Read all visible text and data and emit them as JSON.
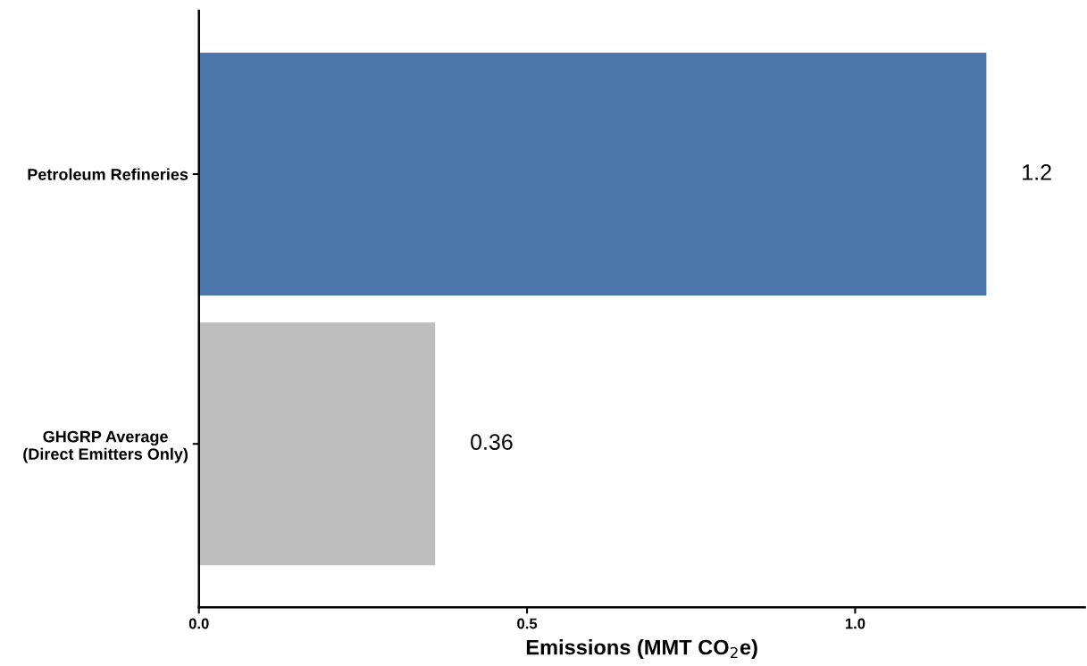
{
  "chart_data": {
    "type": "bar",
    "orientation": "horizontal",
    "categories": [
      "Petroleum Refineries",
      "GHGRP Average\n(Direct Emitters Only)"
    ],
    "values": [
      1.2,
      0.36
    ],
    "colors": [
      "#4a76ab",
      "#bebebe"
    ],
    "data_labels": true,
    "xlabel": "Emissions (MMT CO$_{2}$e)",
    "xlim": [
      0,
      1.35
    ],
    "xticks": [
      {
        "value": 0,
        "label": "0.0"
      },
      {
        "value": 0.5,
        "label": "0.5"
      },
      {
        "value": 1.0,
        "label": "1.0"
      }
    ],
    "grid": false
  }
}
